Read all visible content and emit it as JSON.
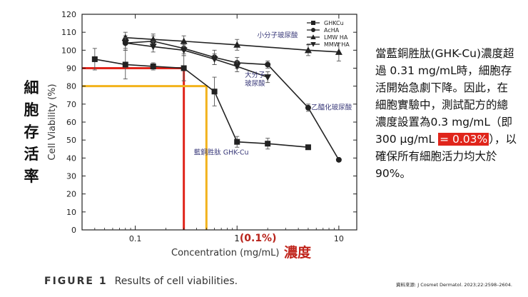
{
  "side_ylabel": "細胞存活率",
  "chart_data": {
    "type": "line",
    "xscale": "log",
    "xlim": [
      0.03,
      15
    ],
    "ylim": [
      0,
      120
    ],
    "xlabel": "Concentration (mg/mL)",
    "xlabel_cn": "濃度",
    "x_annotation": "1(0.1%)",
    "ylabel": "Cell Viability (%)",
    "x_ticks": [
      {
        "value": 0.1,
        "label": "0.1"
      },
      {
        "value": 10,
        "label": "10"
      }
    ],
    "y_ticks": [
      0,
      10,
      20,
      30,
      40,
      50,
      60,
      70,
      80,
      90,
      100,
      110,
      120
    ],
    "legend_position": "top-right",
    "series": [
      {
        "name": "GHKCu",
        "marker": "square",
        "color": "#222222",
        "x": [
          0.04,
          0.08,
          0.15,
          0.3,
          0.6,
          1.0,
          2.0,
          5.0
        ],
        "y": [
          95,
          92,
          91,
          90,
          77,
          49,
          48,
          46
        ],
        "err": [
          6,
          8,
          2,
          7,
          8,
          3,
          3,
          0
        ]
      },
      {
        "name": "AcHA",
        "marker": "circle",
        "color": "#222222",
        "x": [
          0.08,
          0.15,
          0.3,
          0.6,
          1.0,
          2.0,
          5.0,
          10.0
        ],
        "y": [
          104,
          105,
          101,
          96,
          93,
          92,
          68,
          39
        ],
        "err": [
          4,
          3,
          3,
          4,
          3,
          2,
          2,
          0
        ]
      },
      {
        "name": "LMW HA",
        "marker": "triangle-up",
        "color": "#222222",
        "x": [
          0.08,
          0.15,
          0.3,
          1.0,
          5.0,
          10.0
        ],
        "y": [
          107,
          106,
          105,
          103,
          100,
          99
        ],
        "err": [
          3,
          3,
          3,
          3,
          3,
          5
        ]
      },
      {
        "name": "MMW HA",
        "marker": "triangle-down",
        "color": "#222222",
        "x": [
          0.08,
          0.15,
          0.3,
          0.6,
          1.0,
          2.0
        ],
        "y": [
          104,
          102,
          100,
          95,
          91,
          85
        ],
        "err": [
          3,
          3,
          3,
          3,
          3,
          3
        ]
      }
    ],
    "annotations": [
      {
        "text": "小分子玻尿酸",
        "x": 2.5,
        "y": 107
      },
      {
        "text": "大分子\n玻尿酸",
        "x": 1.5,
        "y": 85
      },
      {
        "text": "乙醯化玻尿酸",
        "x": 8.5,
        "y": 67
      },
      {
        "text": "藍銅胜肽  GHK-Cu",
        "x": 0.7,
        "y": 42
      }
    ],
    "reference_lines": [
      {
        "name": "red",
        "color": "#e0251b",
        "x": 0.3,
        "y": 90
      },
      {
        "name": "yellow",
        "color": "#f2b21b",
        "x": 0.5,
        "y": 80
      }
    ]
  },
  "description": {
    "before": "當藍銅胜肽(GHK-Cu)濃度超過 0.31 mg/mL時，細胞存活開始急劇下降。因此，在細胞實驗中，測試配方的總濃度設置為0.3 mg/mL（即300 µg/mL ",
    "highlight": "= 0.03%",
    "after": "），以確保所有細胞活力均大於90%。"
  },
  "caption": {
    "figure": "FIGURE 1",
    "text": "Results of cell viabilities."
  },
  "source": "資料來源: J Cosmet Dermatol. 2023;22:2598–2604."
}
